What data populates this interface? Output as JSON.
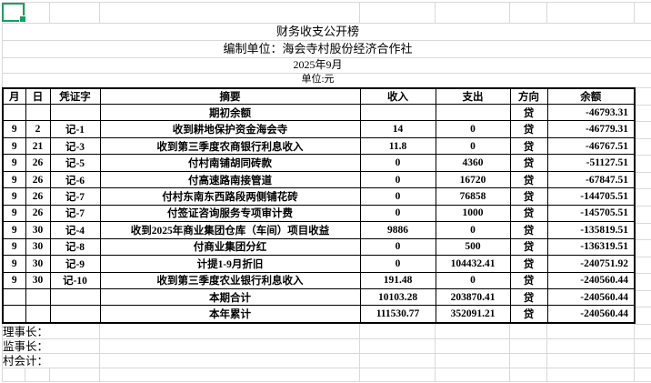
{
  "titles": {
    "main": "财务收支公开榜",
    "unit_line": "编制单位：海会寺村股份经济合作社",
    "period": "2025年9月",
    "currency_line": "单位:元"
  },
  "table": {
    "headers": [
      "月",
      "日",
      "凭证字",
      "摘要",
      "收入",
      "支出",
      "方向",
      "余额"
    ],
    "rows": [
      [
        "",
        "",
        "",
        "期初余额",
        "",
        "",
        "贷",
        "-46793.31"
      ],
      [
        "9",
        "2",
        "记-1",
        "收到耕地保护资金海会寺",
        "14",
        "0",
        "贷",
        "-46779.31"
      ],
      [
        "9",
        "21",
        "记-3",
        "收到第三季度农商银行利息收入",
        "11.8",
        "0",
        "贷",
        "-46767.51"
      ],
      [
        "9",
        "26",
        "记-5",
        "付村南铺胡同砖款",
        "0",
        "4360",
        "贷",
        "-51127.51"
      ],
      [
        "9",
        "26",
        "记-6",
        "付高速路南接管道",
        "0",
        "16720",
        "贷",
        "-67847.51"
      ],
      [
        "9",
        "26",
        "记-7",
        "付村东南东西路段两侧铺花砖",
        "0",
        "76858",
        "贷",
        "-144705.51"
      ],
      [
        "9",
        "26",
        "记-7",
        "付签证咨询服务专项审计费",
        "0",
        "1000",
        "贷",
        "-145705.51"
      ],
      [
        "9",
        "30",
        "记-4",
        "收到2025年商业集团仓库（车间）项目收益",
        "9886",
        "0",
        "贷",
        "-135819.51"
      ],
      [
        "9",
        "30",
        "记-8",
        "付商业集团分红",
        "0",
        "500",
        "贷",
        "-136319.51"
      ],
      [
        "9",
        "30",
        "记-9",
        "计提1-9月折旧",
        "0",
        "104432.41",
        "贷",
        "-240751.92"
      ],
      [
        "9",
        "30",
        "记-10",
        "收到第三季度农业银行利息收入",
        "191.48",
        "0",
        "贷",
        "-240560.44"
      ],
      [
        "",
        "",
        "",
        "本期合计",
        "10103.28",
        "203870.41",
        "贷",
        "-240560.44"
      ],
      [
        "",
        "",
        "",
        "本年累计",
        "111530.77",
        "352091.21",
        "贷",
        "-240560.44"
      ]
    ]
  },
  "signatures": [
    "理事长：",
    "监事长：",
    "村会计："
  ],
  "selection": {
    "cell": "A1"
  },
  "colors": {
    "selection_green": "#18a05f",
    "gridline_gray": "#d9d9d9",
    "table_border": "#000000"
  }
}
